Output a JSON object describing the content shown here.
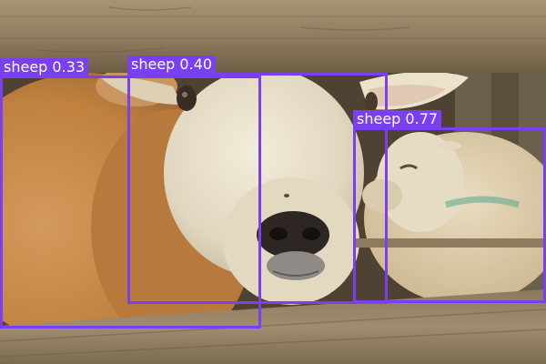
{
  "detections": [
    {
      "label": "sheep",
      "score": "0.33"
    },
    {
      "label": "sheep",
      "score": "0.40"
    },
    {
      "label": "sheep",
      "score": "0.77"
    }
  ],
  "colors": {
    "box": "#7b3ff2",
    "label_text": "#ffffff",
    "wood": "#9c8a6e",
    "fleece": "#c98a4e",
    "sheep_face": "#e8e2d0"
  }
}
